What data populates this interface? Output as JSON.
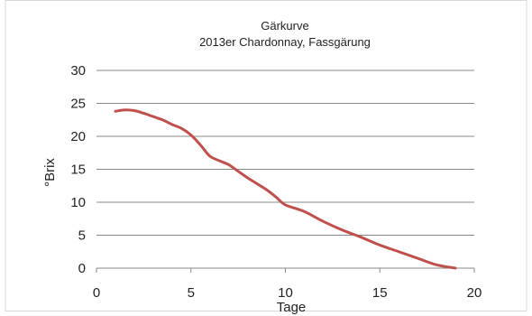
{
  "chart_data": {
    "type": "line",
    "title": "Gärkurve",
    "subtitle": "2013er Chardonnay, Fassgärung",
    "xlabel": "Tage",
    "ylabel": "°Brix",
    "xlim": [
      0,
      20
    ],
    "ylim": [
      0,
      30
    ],
    "xticks": [
      "0",
      "5",
      "10",
      "15",
      "20"
    ],
    "yticks": [
      "0",
      "5",
      "10",
      "15",
      "20",
      "25",
      "30"
    ],
    "grid": "horizontal",
    "legend": "none",
    "colors": {
      "line": "#c0504d",
      "grid": "#888888",
      "axis": "#888888",
      "border": "#d9d9d9"
    },
    "series": [
      {
        "x": [
          1,
          1.5,
          2,
          2.5,
          3,
          3.5,
          4,
          4.5,
          5,
          5.5,
          6,
          6.5,
          7,
          7.5,
          8,
          8.5,
          9,
          9.5,
          10,
          11,
          12,
          13,
          14,
          15,
          16,
          17,
          18,
          19
        ],
        "values": [
          23.8,
          24.0,
          23.9,
          23.5,
          23.0,
          22.5,
          21.8,
          21.2,
          20.2,
          18.7,
          17.0,
          16.3,
          15.7,
          14.7,
          13.7,
          12.8,
          11.9,
          10.8,
          9.6,
          8.6,
          7.1,
          5.8,
          4.7,
          3.5,
          2.5,
          1.5,
          0.5,
          0
        ]
      }
    ]
  }
}
